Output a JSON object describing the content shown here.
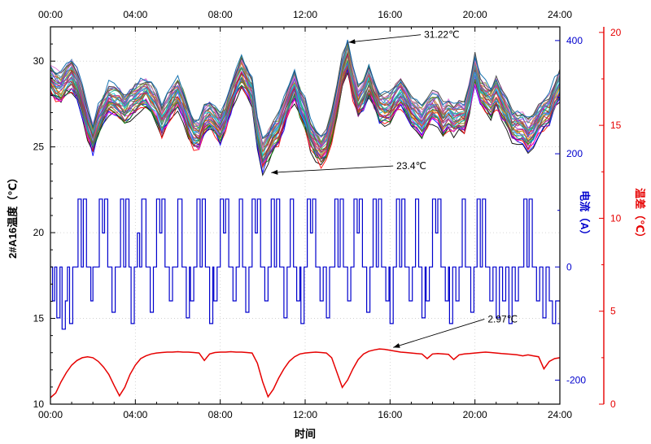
{
  "chart_data": {
    "type": "line",
    "x_axis": {
      "label": "时间",
      "tick_labels": [
        "00:00",
        "04:00",
        "08:00",
        "12:00",
        "16:00",
        "20:00",
        "24:00"
      ],
      "tick_hours": [
        0,
        4,
        8,
        12,
        16,
        20,
        24
      ],
      "range_hours": [
        0,
        24
      ],
      "minor_step_hours": 1
    },
    "left_axis": {
      "label": "2#A16温度（℃）",
      "ticks": [
        10,
        15,
        20,
        25,
        30
      ],
      "range": [
        10,
        32
      ],
      "color": "#000000"
    },
    "right_axis_current": {
      "label": "电流（A）",
      "ticks": [
        -200,
        0,
        200,
        400
      ],
      "color": "#0000cd",
      "zero_at_left_value": 18,
      "left_units_per_200A": 6.6
    },
    "right_axis_tempdiff": {
      "label": "温差（℃）",
      "ticks": [
        0,
        5,
        10,
        15,
        20
      ],
      "range": [
        0,
        20.3
      ],
      "color": "#e60000"
    },
    "grid": {
      "on": true,
      "x_lines_hours": [
        4,
        8,
        12,
        16,
        20
      ],
      "y_lines_temp": [
        15,
        20,
        25,
        30
      ]
    },
    "temperature_bundle": {
      "x_step_hours": 0.25,
      "series_count": 32,
      "band_halfwidth": 0.85,
      "mean": [
        28.6,
        28.4,
        28.6,
        29.0,
        29.3,
        28.6,
        27.6,
        26.4,
        25.6,
        26.4,
        27.2,
        27.6,
        27.8,
        27.4,
        27.0,
        27.3,
        27.6,
        28.0,
        28.2,
        27.6,
        27.0,
        26.6,
        26.9,
        27.5,
        28.2,
        27.6,
        26.8,
        26.0,
        25.8,
        26.5,
        27.0,
        26.5,
        26.0,
        26.8,
        27.6,
        28.6,
        29.2,
        28.8,
        28.0,
        26.0,
        24.3,
        24.8,
        25.6,
        26.3,
        26.9,
        27.6,
        28.3,
        27.6,
        26.6,
        25.6,
        24.9,
        25.0,
        25.3,
        26.2,
        27.4,
        29.2,
        30.3,
        28.6,
        27.4,
        28.0,
        28.8,
        28.2,
        27.6,
        27.2,
        27.0,
        27.8,
        28.4,
        28.0,
        27.4,
        27.0,
        26.6,
        26.9,
        27.2,
        27.0,
        26.8,
        26.6,
        26.5,
        26.8,
        27.0,
        28.2,
        29.4,
        28.4,
        27.6,
        27.8,
        27.9,
        27.4,
        26.8,
        26.4,
        26.1,
        25.8,
        25.6,
        26.0,
        26.5,
        27.0,
        27.4,
        28.0,
        28.6
      ],
      "palette": [
        "#000000",
        "#ff0000",
        "#0000ff",
        "#008000",
        "#ff00ff",
        "#800080",
        "#008080",
        "#808000",
        "#a0522d",
        "#00bfff",
        "#dc143c",
        "#4169e1",
        "#2e8b57",
        "#ff8c00",
        "#9932cc",
        "#556b2f",
        "#b22222",
        "#1e90ff",
        "#3cb371",
        "#c71585",
        "#00ced1",
        "#8b4513",
        "#6a5acd",
        "#d2691e",
        "#20b2aa",
        "#8a2be2",
        "#cd5c5c",
        "#4682b4",
        "#6b8e23",
        "#da70d6",
        "#404040",
        "#0066aa"
      ]
    },
    "current_steps_amps": [
      [
        0,
        0
      ],
      [
        0.1,
        -60
      ],
      [
        0.2,
        0
      ],
      [
        0.3,
        -90
      ],
      [
        0.45,
        0
      ],
      [
        0.55,
        -110
      ],
      [
        0.7,
        -60
      ],
      [
        0.8,
        0
      ],
      [
        0.9,
        -100
      ],
      [
        1.05,
        0
      ],
      [
        1.3,
        120
      ],
      [
        1.45,
        0
      ],
      [
        1.55,
        120
      ],
      [
        1.7,
        0
      ],
      [
        1.9,
        -60
      ],
      [
        2.0,
        0
      ],
      [
        2.3,
        120
      ],
      [
        2.45,
        60
      ],
      [
        2.55,
        120
      ],
      [
        2.7,
        0
      ],
      [
        2.9,
        -80
      ],
      [
        3.05,
        0
      ],
      [
        3.3,
        120
      ],
      [
        3.45,
        0
      ],
      [
        3.55,
        120
      ],
      [
        3.7,
        0
      ],
      [
        3.8,
        -100
      ],
      [
        3.95,
        0
      ],
      [
        4.1,
        60
      ],
      [
        4.2,
        0
      ],
      [
        4.3,
        120
      ],
      [
        4.5,
        0
      ],
      [
        4.7,
        -80
      ],
      [
        4.85,
        0
      ],
      [
        5.0,
        120
      ],
      [
        5.15,
        60
      ],
      [
        5.25,
        120
      ],
      [
        5.4,
        0
      ],
      [
        5.6,
        -60
      ],
      [
        5.75,
        0
      ],
      [
        6.0,
        120
      ],
      [
        6.2,
        0
      ],
      [
        6.4,
        -90
      ],
      [
        6.55,
        0
      ],
      [
        6.6,
        -60
      ],
      [
        6.75,
        0
      ],
      [
        6.9,
        120
      ],
      [
        7.05,
        0
      ],
      [
        7.15,
        120
      ],
      [
        7.3,
        0
      ],
      [
        7.5,
        -100
      ],
      [
        7.65,
        0
      ],
      [
        7.7,
        -60
      ],
      [
        7.85,
        0
      ],
      [
        8.0,
        120
      ],
      [
        8.15,
        60
      ],
      [
        8.25,
        120
      ],
      [
        8.4,
        0
      ],
      [
        8.6,
        -60
      ],
      [
        8.75,
        0
      ],
      [
        8.9,
        120
      ],
      [
        9.05,
        0
      ],
      [
        9.2,
        -80
      ],
      [
        9.35,
        0
      ],
      [
        9.5,
        120
      ],
      [
        9.65,
        60
      ],
      [
        9.75,
        120
      ],
      [
        9.9,
        0
      ],
      [
        10.1,
        -60
      ],
      [
        10.25,
        0
      ],
      [
        10.4,
        120
      ],
      [
        10.55,
        0
      ],
      [
        10.65,
        120
      ],
      [
        10.8,
        0
      ],
      [
        11.0,
        -90
      ],
      [
        11.15,
        0
      ],
      [
        11.3,
        120
      ],
      [
        11.45,
        0
      ],
      [
        11.6,
        -60
      ],
      [
        11.75,
        0
      ],
      [
        11.8,
        -100
      ],
      [
        11.95,
        0
      ],
      [
        12.1,
        120
      ],
      [
        12.25,
        60
      ],
      [
        12.35,
        120
      ],
      [
        12.5,
        0
      ],
      [
        12.7,
        -60
      ],
      [
        12.85,
        0
      ],
      [
        13.0,
        -90
      ],
      [
        13.15,
        0
      ],
      [
        13.4,
        120
      ],
      [
        13.55,
        0
      ],
      [
        13.65,
        120
      ],
      [
        13.8,
        0
      ],
      [
        14.0,
        -60
      ],
      [
        14.15,
        0
      ],
      [
        14.3,
        120
      ],
      [
        14.45,
        60
      ],
      [
        14.55,
        120
      ],
      [
        14.7,
        0
      ],
      [
        14.9,
        -80
      ],
      [
        15.05,
        0
      ],
      [
        15.2,
        120
      ],
      [
        15.35,
        0
      ],
      [
        15.45,
        120
      ],
      [
        15.6,
        0
      ],
      [
        15.8,
        -60
      ],
      [
        15.95,
        0
      ],
      [
        16.0,
        -100
      ],
      [
        16.15,
        0
      ],
      [
        16.3,
        120
      ],
      [
        16.45,
        0
      ],
      [
        16.55,
        120
      ],
      [
        16.7,
        0
      ],
      [
        16.9,
        -60
      ],
      [
        17.05,
        0
      ],
      [
        17.2,
        120
      ],
      [
        17.35,
        0
      ],
      [
        17.5,
        -90
      ],
      [
        17.65,
        0
      ],
      [
        17.7,
        -60
      ],
      [
        17.85,
        0
      ],
      [
        18.0,
        120
      ],
      [
        18.15,
        60
      ],
      [
        18.25,
        120
      ],
      [
        18.4,
        0
      ],
      [
        18.6,
        -60
      ],
      [
        18.75,
        0
      ],
      [
        18.8,
        -100
      ],
      [
        18.95,
        0
      ],
      [
        19.1,
        -60
      ],
      [
        19.25,
        0
      ],
      [
        19.4,
        120
      ],
      [
        19.55,
        0
      ],
      [
        19.8,
        -80
      ],
      [
        19.95,
        0
      ],
      [
        20.1,
        120
      ],
      [
        20.25,
        0
      ],
      [
        20.35,
        120
      ],
      [
        20.5,
        0
      ],
      [
        20.7,
        -60
      ],
      [
        20.85,
        0
      ],
      [
        21.0,
        -90
      ],
      [
        21.15,
        0
      ],
      [
        21.3,
        -60
      ],
      [
        21.45,
        0
      ],
      [
        21.6,
        -100
      ],
      [
        21.75,
        0
      ],
      [
        21.9,
        -60
      ],
      [
        22.05,
        0
      ],
      [
        22.3,
        120
      ],
      [
        22.45,
        0
      ],
      [
        22.55,
        120
      ],
      [
        22.7,
        0
      ],
      [
        22.9,
        -60
      ],
      [
        23.05,
        0
      ],
      [
        23.2,
        -90
      ],
      [
        23.35,
        0
      ],
      [
        23.5,
        -60
      ],
      [
        23.65,
        -100
      ],
      [
        23.8,
        -60
      ],
      [
        24,
        -60
      ]
    ],
    "temp_diff": {
      "x_step_hours": 0.25,
      "values": [
        0.35,
        0.6,
        1.2,
        1.7,
        2.1,
        2.35,
        2.5,
        2.55,
        2.5,
        2.3,
        2.0,
        1.6,
        1.0,
        0.45,
        0.9,
        1.6,
        2.1,
        2.45,
        2.6,
        2.7,
        2.75,
        2.78,
        2.8,
        2.8,
        2.82,
        2.8,
        2.8,
        2.78,
        2.75,
        2.35,
        2.7,
        2.78,
        2.8,
        2.8,
        2.82,
        2.8,
        2.8,
        2.78,
        2.75,
        2.2,
        1.2,
        0.4,
        0.8,
        1.4,
        1.9,
        2.3,
        2.55,
        2.7,
        2.75,
        2.78,
        2.8,
        2.78,
        2.75,
        2.5,
        1.7,
        0.9,
        1.3,
        1.9,
        2.4,
        2.7,
        2.85,
        2.92,
        2.97,
        2.95,
        2.9,
        2.85,
        2.8,
        2.78,
        2.75,
        2.72,
        2.7,
        2.45,
        2.7,
        2.72,
        2.7,
        2.68,
        2.4,
        2.65,
        2.7,
        2.72,
        2.75,
        2.78,
        2.8,
        2.78,
        2.75,
        2.72,
        2.7,
        2.68,
        2.65,
        2.6,
        2.65,
        2.6,
        2.55,
        1.9,
        2.3,
        2.45,
        2.5
      ]
    },
    "annotations": [
      {
        "label": "31.22℃",
        "axis": "temp",
        "text_t": 17.6,
        "text_v": 31.35,
        "point_t": 14.05,
        "point_v": 31.1
      },
      {
        "label": "23.4℃",
        "axis": "temp",
        "text_t": 16.3,
        "text_v": 23.7,
        "point_t": 10.4,
        "point_v": 23.5
      },
      {
        "label": "2.97℃",
        "axis": "red",
        "text_t": 20.6,
        "text_v": 4.4,
        "point_t": 16.15,
        "point_v": 3.05
      }
    ]
  }
}
